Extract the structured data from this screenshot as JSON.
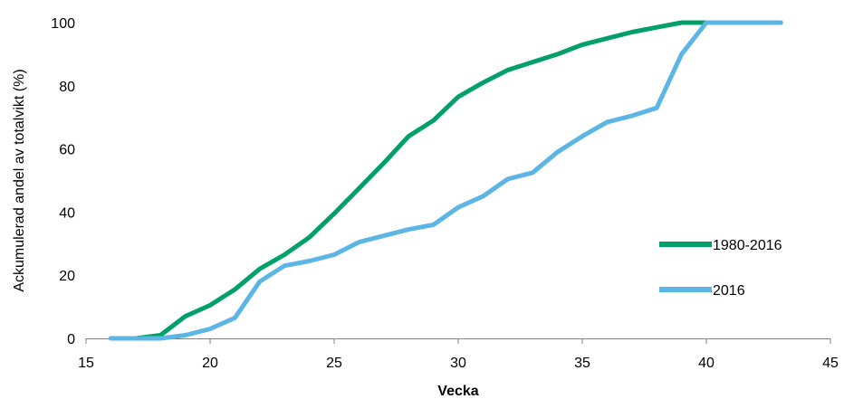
{
  "chart_data": {
    "type": "line",
    "xlabel": "Vecka",
    "ylabel": "Ackumulerad andel av totalvikt (%)",
    "xlim": [
      15,
      45
    ],
    "ylim": [
      0,
      100
    ],
    "xticks": [
      "15",
      "20",
      "25",
      "30",
      "35",
      "40",
      "45"
    ],
    "yticks": [
      "0",
      "20",
      "40",
      "60",
      "80",
      "100"
    ],
    "grid": false,
    "legend_position": "right",
    "series": [
      {
        "name": "1980-2016",
        "color": "#00a06a",
        "x": [
          16,
          17,
          18,
          19,
          20,
          21,
          22,
          23,
          24,
          25,
          26,
          27,
          28,
          29,
          30,
          31,
          32,
          33,
          34,
          35,
          36,
          37,
          38,
          39,
          40,
          41,
          42,
          43
        ],
        "y": [
          0,
          0,
          1,
          7,
          10.5,
          15.5,
          22,
          26.5,
          32,
          39.5,
          47.5,
          55.5,
          64,
          69,
          76.5,
          81,
          85,
          87.5,
          90,
          93,
          95,
          97,
          98.5,
          100,
          100,
          100,
          100,
          100
        ]
      },
      {
        "name": "2016",
        "color": "#5bb5e5",
        "x": [
          16,
          17,
          18,
          19,
          20,
          21,
          22,
          23,
          24,
          25,
          26,
          27,
          28,
          29,
          30,
          31,
          32,
          33,
          34,
          35,
          36,
          37,
          38,
          39,
          40,
          41,
          42,
          43
        ],
        "y": [
          0,
          0,
          0,
          1,
          3,
          6.5,
          18,
          23,
          24.5,
          26.5,
          30.5,
          32.5,
          34.5,
          36,
          41.5,
          45,
          50.5,
          52.5,
          59,
          64,
          68.5,
          70.5,
          73,
          90,
          100,
          100,
          100,
          100
        ]
      }
    ]
  }
}
